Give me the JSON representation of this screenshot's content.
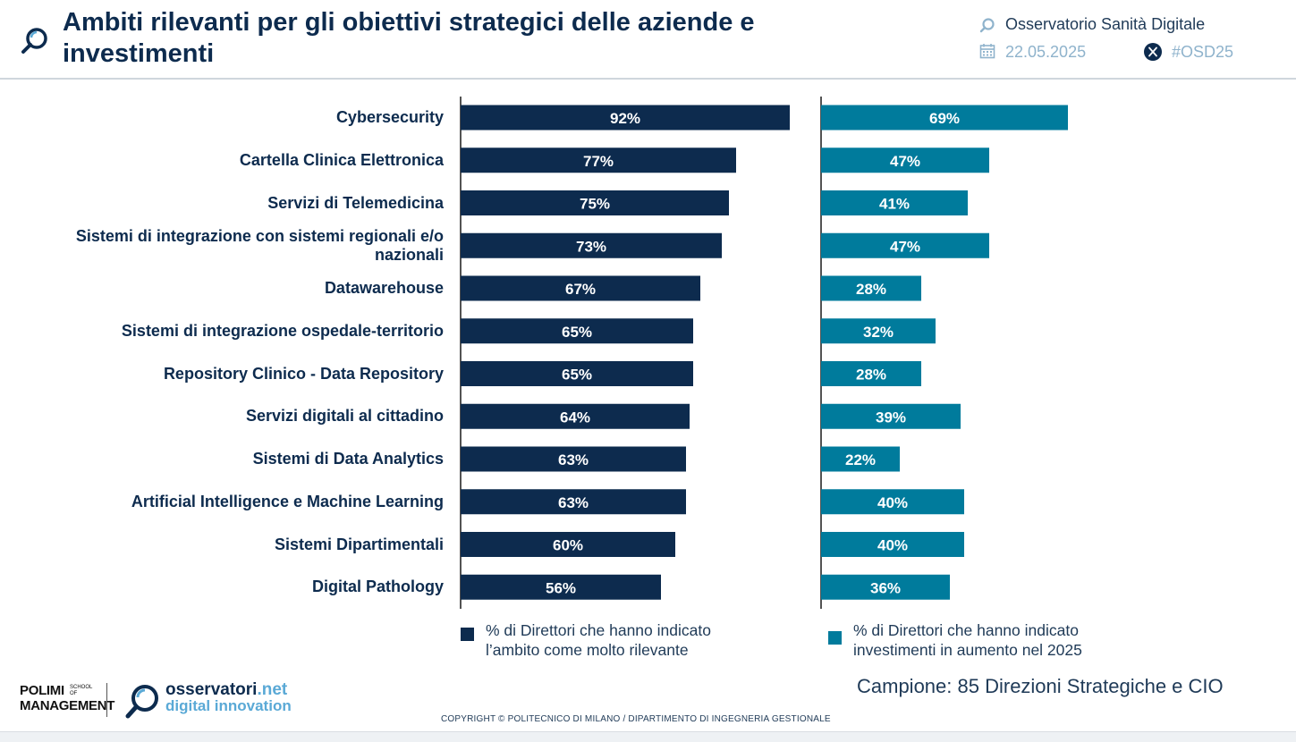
{
  "header": {
    "title": "Ambiti rilevanti per gli obiettivi strategici delle aziende e investimenti",
    "source": "Osservatorio Sanità Digitale",
    "date": "22.05.2025",
    "hashtag": "#OSD25",
    "icons": [
      "magnifier-icon",
      "calendar-icon",
      "x-logo-icon"
    ]
  },
  "chart_data": {
    "type": "bar",
    "orientation": "horizontal",
    "categories": [
      "Cybersecurity",
      "Cartella Clinica Elettronica",
      "Servizi di Telemedicina",
      "Sistemi di integrazione con sistemi regionali e/o nazionali",
      "Datawarehouse",
      "Sistemi di integrazione ospedale-territorio",
      "Repository Clinico - Data Repository",
      "Servizi digitali al cittadino",
      "Sistemi di Data Analytics",
      "Artificial Intelligence e Machine Learning",
      "Sistemi Dipartimentali",
      "Digital Pathology"
    ],
    "series": [
      {
        "name": "% di Direttori che hanno indicato l’ambito come molto rilevante",
        "values": [
          92,
          77,
          75,
          73,
          67,
          65,
          65,
          64,
          63,
          63,
          60,
          56
        ],
        "labels": [
          "92%",
          "77%",
          "75%",
          "73%",
          "67%",
          "65%",
          "65%",
          "64%",
          "63%",
          "63%",
          "60%",
          "56%"
        ],
        "color": "#0d2b4e"
      },
      {
        "name": "% di Direttori che hanno indicato investimenti in aumento nel 2025",
        "values": [
          69,
          47,
          41,
          47,
          28,
          32,
          28,
          39,
          22,
          40,
          40,
          36
        ],
        "labels": [
          "69%",
          "47%",
          "41%",
          "47%",
          "28%",
          "32%",
          "28%",
          "39%",
          "22%",
          "40%",
          "40%",
          "36%"
        ],
        "color": "#007b9c"
      }
    ],
    "xlim": [
      0,
      100
    ],
    "grid": false,
    "legend": "bottom"
  },
  "footer": {
    "sample": "Campione: 85 Direzioni Strategiche e CIO",
    "copyright": "COPYRIGHT © POLITECNICO DI MILANO / DIPARTIMENTO DI INGEGNERIA GESTIONALE",
    "polimi_line1": "POLIMI",
    "polimi_line2": "MANAGEMENT",
    "polimi_small": "SCHOOL OF",
    "osserv_name": "osservatori",
    "osserv_tld": ".net",
    "osserv_sub": "digital innovation"
  }
}
